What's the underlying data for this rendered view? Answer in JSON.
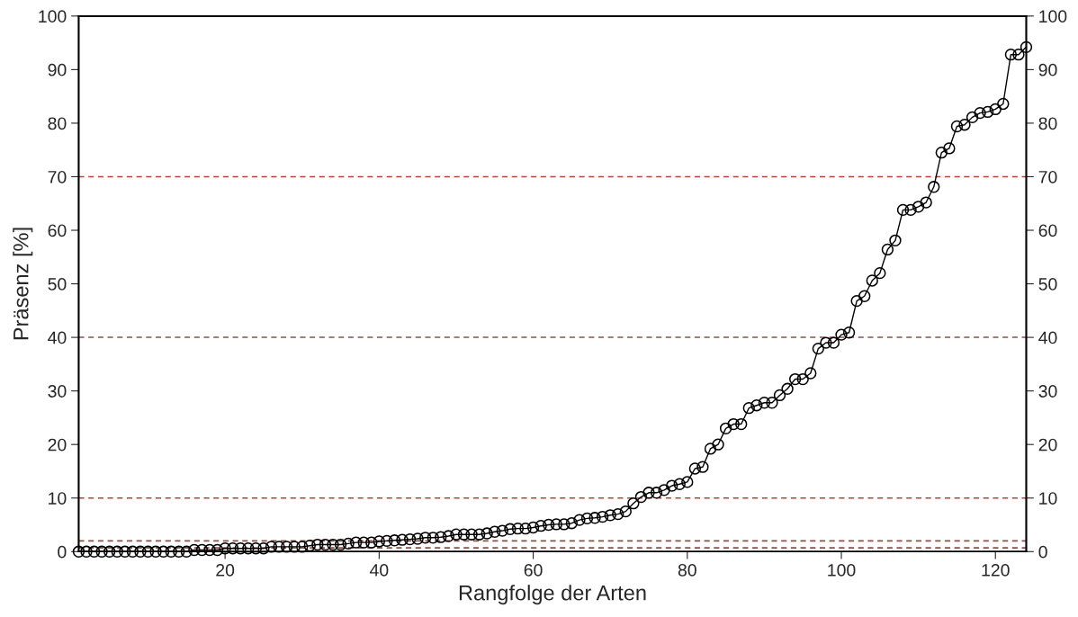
{
  "chart_data": {
    "type": "line",
    "xlabel": "Rangfolge der Arten",
    "ylabel": "Präsenz [%]",
    "x": [
      1,
      2,
      3,
      4,
      5,
      6,
      7,
      8,
      9,
      10,
      11,
      12,
      13,
      14,
      15,
      16,
      17,
      18,
      19,
      20,
      21,
      22,
      23,
      24,
      25,
      26,
      27,
      28,
      29,
      30,
      31,
      32,
      33,
      34,
      35,
      36,
      37,
      38,
      39,
      40,
      41,
      42,
      43,
      44,
      45,
      46,
      47,
      48,
      49,
      50,
      51,
      52,
      53,
      54,
      55,
      56,
      57,
      58,
      59,
      60,
      61,
      62,
      63,
      64,
      65,
      66,
      67,
      68,
      69,
      70,
      71,
      72,
      73,
      74,
      75,
      76,
      77,
      78,
      79,
      80,
      81,
      82,
      83,
      84,
      85,
      86,
      87,
      88,
      89,
      90,
      91,
      92,
      93,
      94,
      95,
      96,
      97,
      98,
      99,
      100,
      101,
      102,
      103,
      104,
      105,
      106,
      107,
      108,
      109,
      110,
      111,
      112,
      113,
      114,
      115,
      116,
      117,
      118,
      119,
      120,
      121,
      122,
      123,
      124
    ],
    "series": [
      {
        "color": "#000000",
        "values": [
          0,
          0,
          0,
          0,
          0,
          0,
          0,
          0,
          0,
          0,
          0,
          0,
          0,
          0,
          0,
          0.3,
          0.3,
          0.3,
          0.3,
          0.6,
          0.6,
          0.6,
          0.6,
          0.6,
          0.6,
          0.9,
          0.9,
          0.9,
          0.9,
          0.9,
          1.1,
          1.3,
          1.3,
          1.3,
          1.3,
          1.5,
          1.7,
          1.7,
          1.7,
          1.9,
          2.0,
          2.1,
          2.2,
          2.3,
          2.4,
          2.6,
          2.6,
          2.7,
          2.9,
          3.2,
          3.2,
          3.2,
          3.2,
          3.4,
          3.7,
          3.9,
          4.2,
          4.3,
          4.3,
          4.5,
          4.8,
          5.0,
          5.1,
          5.1,
          5.3,
          5.9,
          6.2,
          6.3,
          6.5,
          6.8,
          7.0,
          7.5,
          9.0,
          10.2,
          11.0,
          11.0,
          11.5,
          12.3,
          12.6,
          13.0,
          15.5,
          15.8,
          19.2,
          20.0,
          23.0,
          23.8,
          23.8,
          26.8,
          27.3,
          27.8,
          27.8,
          29.2,
          30.4,
          32.2,
          32.2,
          33.3,
          37.9,
          39.0,
          39.0,
          40.5,
          40.9,
          46.8,
          47.7,
          50.6,
          52.0,
          56.4,
          58.1,
          63.8,
          63.8,
          64.4,
          65.2,
          68.1,
          74.5,
          75.3,
          79.4,
          79.7,
          81.1,
          81.9,
          82.1,
          82.6,
          83.6,
          92.8,
          92.8,
          94.2
        ]
      }
    ],
    "marker": "circle",
    "line_style": "solid",
    "grid": false,
    "xlim": [
      1,
      124
    ],
    "xticks": [
      20,
      40,
      60,
      80,
      100,
      120
    ],
    "ylim": [
      0,
      100
    ],
    "yticks": [
      0,
      10,
      20,
      30,
      40,
      50,
      60,
      70,
      80,
      90,
      100
    ],
    "y2lim": [
      0,
      100
    ],
    "y2ticks": [
      0,
      10,
      20,
      30,
      40,
      50,
      60,
      70,
      80,
      90,
      100
    ],
    "ref_lines": [
      {
        "axis": "y",
        "value": 70,
        "color": "#b0463a",
        "line_style": "dashed"
      },
      {
        "axis": "y",
        "value": 40,
        "color": "#8c5048",
        "line_style": "dashed"
      },
      {
        "axis": "y",
        "value": 10,
        "color": "#b0463a",
        "line_style": "dashed"
      },
      {
        "axis": "y",
        "value": 2,
        "color": "#8c5048",
        "line_style": "dashed"
      },
      {
        "axis": "y",
        "value": 0.7,
        "color": "#8c5048",
        "line_style": "dashed"
      }
    ]
  }
}
